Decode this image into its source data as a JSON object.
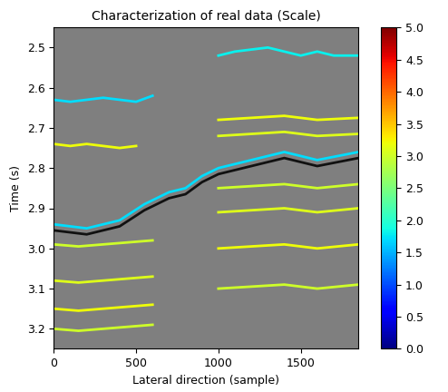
{
  "chart_data": {
    "type": "line",
    "title": "Characterization of real data (Scale)",
    "x_label": "Lateral direction (sample)",
    "y_label": "Time (s)",
    "xlim": [
      0,
      1850
    ],
    "xticks": [
      0,
      500,
      1000,
      1500
    ],
    "ylim": [
      3.25,
      2.45
    ],
    "yticks": [
      2.5,
      2.6,
      2.7,
      2.8,
      2.9,
      3.0,
      3.1,
      3.2
    ],
    "colorbar": {
      "range": [
        0,
        5
      ],
      "ticks": [
        {
          "value": 0,
          "label": "0.0"
        },
        {
          "value": 0.5,
          "label": "0.5"
        },
        {
          "value": 1,
          "label": "1.0"
        },
        {
          "value": 1.5,
          "label": "1.5"
        },
        {
          "value": 2,
          "label": "2.0"
        },
        {
          "value": 2.5,
          "label": "2.5"
        },
        {
          "value": 3,
          "label": "3.0"
        },
        {
          "value": 3.5,
          "label": "3.5"
        },
        {
          "value": 4,
          "label": "4.0"
        },
        {
          "value": 4.5,
          "label": "4.5"
        },
        {
          "value": 5,
          "label": "5.0"
        }
      ]
    },
    "series": [
      {
        "x": [
          0,
          100,
          200,
          300,
          400,
          500,
          600
        ],
        "y": [
          2.63,
          2.635,
          2.63,
          2.625,
          2.63,
          2.635,
          2.62
        ],
        "scale": 1.7
      },
      {
        "x": [
          1000,
          1100,
          1200,
          1300,
          1400,
          1500,
          1600,
          1700,
          1850
        ],
        "y": [
          2.52,
          2.51,
          2.505,
          2.5,
          2.51,
          2.52,
          2.51,
          2.52,
          2.52
        ],
        "scale": 1.8
      },
      {
        "x": [
          0,
          100,
          200,
          300,
          400,
          500
        ],
        "y": [
          2.74,
          2.745,
          2.74,
          2.745,
          2.75,
          2.745
        ],
        "scale": 3.2
      },
      {
        "x": [
          1000,
          1200,
          1400,
          1600,
          1850
        ],
        "y": [
          2.68,
          2.675,
          2.67,
          2.68,
          2.675
        ],
        "scale": 3.2
      },
      {
        "x": [
          0,
          200,
          400,
          550,
          700,
          800,
          900,
          1000,
          1200,
          1400,
          1600,
          1850
        ],
        "y": [
          2.94,
          2.95,
          2.93,
          2.89,
          2.86,
          2.85,
          2.82,
          2.8,
          2.78,
          2.76,
          2.78,
          2.76
        ],
        "scale": 1.7
      },
      {
        "x": [
          0,
          200,
          400,
          550,
          700,
          800,
          900,
          1000,
          1200,
          1400,
          1600,
          1850
        ],
        "y": [
          2.955,
          2.965,
          2.945,
          2.905,
          2.875,
          2.865,
          2.835,
          2.815,
          2.795,
          2.775,
          2.795,
          2.775
        ],
        "color": "#111111"
      },
      {
        "x": [
          0,
          150,
          300,
          450,
          600
        ],
        "y": [
          2.99,
          2.995,
          2.99,
          2.985,
          2.98
        ],
        "scale": 3.0
      },
      {
        "x": [
          0,
          150,
          300,
          450,
          600
        ],
        "y": [
          3.08,
          3.085,
          3.08,
          3.075,
          3.07
        ],
        "scale": 3.1
      },
      {
        "x": [
          0,
          150,
          300,
          450,
          600
        ],
        "y": [
          3.15,
          3.155,
          3.15,
          3.145,
          3.14
        ],
        "scale": 3.2
      },
      {
        "x": [
          0,
          150,
          300,
          450,
          600
        ],
        "y": [
          3.2,
          3.205,
          3.2,
          3.195,
          3.19
        ],
        "scale": 3.0
      },
      {
        "x": [
          1000,
          1200,
          1400,
          1600,
          1850
        ],
        "y": [
          2.72,
          2.715,
          2.71,
          2.72,
          2.715
        ],
        "scale": 3.1
      },
      {
        "x": [
          1000,
          1200,
          1400,
          1600,
          1850
        ],
        "y": [
          2.85,
          2.845,
          2.84,
          2.85,
          2.84
        ],
        "scale": 3.0
      },
      {
        "x": [
          1000,
          1200,
          1400,
          1600,
          1850
        ],
        "y": [
          2.91,
          2.905,
          2.9,
          2.91,
          2.9
        ],
        "scale": 3.1
      },
      {
        "x": [
          1000,
          1200,
          1400,
          1600,
          1850
        ],
        "y": [
          3.0,
          2.995,
          2.99,
          3.0,
          2.99
        ],
        "scale": 3.2
      },
      {
        "x": [
          1000,
          1200,
          1400,
          1600,
          1850
        ],
        "y": [
          3.1,
          3.095,
          3.09,
          3.1,
          3.09
        ],
        "scale": 3.0
      }
    ]
  }
}
